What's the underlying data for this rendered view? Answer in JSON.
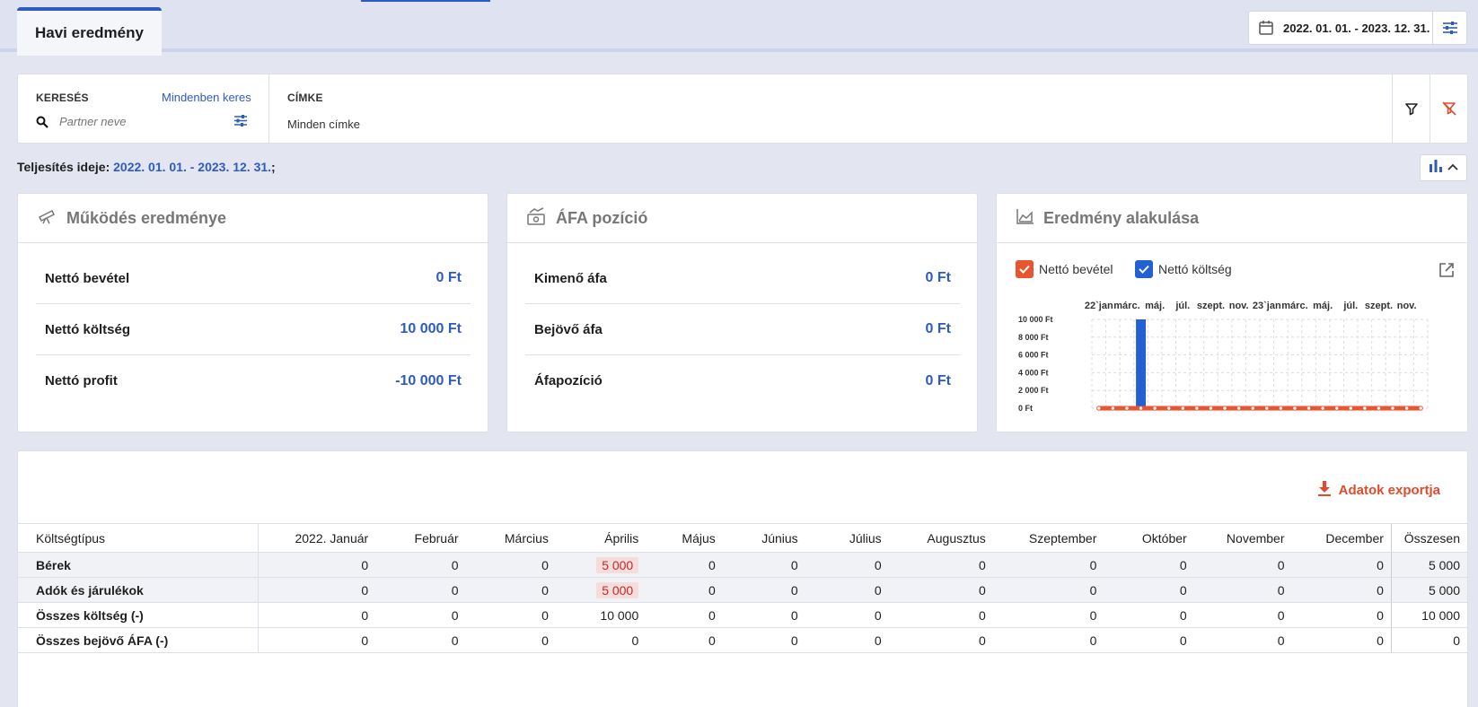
{
  "header": {
    "tab_label": "Havi eredmény",
    "date_range": "2022. 01. 01. - 2023. 12. 31."
  },
  "filter": {
    "search_label": "KERESÉS",
    "search_all_link": "Mindenben keres",
    "search_placeholder": "Partner neve",
    "tag_label": "CÍMKE",
    "tag_value": "Minden címke"
  },
  "performance": {
    "label": "Teljesítés ideje:",
    "value": "2022. 01. 01. - 2023. 12. 31.",
    "suffix": ";"
  },
  "cards": {
    "operation": {
      "title": "Működés eredménye",
      "rows": [
        {
          "label": "Nettó bevétel",
          "value": "0 Ft"
        },
        {
          "label": "Nettó költség",
          "value": "10 000 Ft"
        },
        {
          "label": "Nettó profit",
          "value": "-10 000 Ft"
        }
      ]
    },
    "vat": {
      "title": "ÁFA pozíció",
      "rows": [
        {
          "label": "Kimenő áfa",
          "value": "0 Ft"
        },
        {
          "label": "Bejövő áfa",
          "value": "0 Ft"
        },
        {
          "label": "Áfapozíció",
          "value": "0 Ft"
        }
      ]
    },
    "trend": {
      "title": "Eredmény alakulása",
      "legend_income": "Nettó bevétel",
      "legend_cost": "Nettó költség"
    }
  },
  "colors": {
    "accent": "#2e5bc0",
    "income": "#e8552f",
    "cost": "#2360d1"
  },
  "chart_data": {
    "type": "bar",
    "x_tick_labels": [
      "22`jan",
      "márc.",
      "máj.",
      "júl.",
      "szept.",
      "nov.",
      "23`jan",
      "márc.",
      "máj.",
      "júl.",
      "szept.",
      "nov."
    ],
    "x_tick_months": [
      0,
      2,
      4,
      6,
      8,
      10,
      12,
      14,
      16,
      18,
      20,
      22
    ],
    "y_tick_labels": [
      "10 000 Ft",
      "8 000 Ft",
      "6 000 Ft",
      "4 000 Ft",
      "2 000 Ft",
      "0 Ft"
    ],
    "ylim": [
      0,
      10000
    ],
    "months": 24,
    "series": [
      {
        "name": "Nettó költség",
        "kind": "bar",
        "values": [
          0,
          0,
          0,
          10000,
          0,
          0,
          0,
          0,
          0,
          0,
          0,
          0,
          0,
          0,
          0,
          0,
          0,
          0,
          0,
          0,
          0,
          0,
          0,
          0
        ]
      },
      {
        "name": "Nettó bevétel",
        "kind": "line",
        "values": [
          0,
          0,
          0,
          0,
          0,
          0,
          0,
          0,
          0,
          0,
          0,
          0,
          0,
          0,
          0,
          0,
          0,
          0,
          0,
          0,
          0,
          0,
          0,
          0
        ]
      }
    ],
    "grid": true
  },
  "table": {
    "export_label": "Adatok exportja",
    "columns": [
      "Költségtípus",
      "2022. Január",
      "Február",
      "Március",
      "Április",
      "Május",
      "Június",
      "Július",
      "Augusztus",
      "Szeptember",
      "Október",
      "November",
      "December",
      "Összesen"
    ],
    "rows": [
      {
        "label": "Bérek",
        "cells": [
          "0",
          "0",
          "0",
          "5 000",
          "0",
          "0",
          "0",
          "0",
          "0",
          "0",
          "0",
          "0"
        ],
        "total": "5 000",
        "highlight": [
          3
        ]
      },
      {
        "label": "Adók és járulékok",
        "cells": [
          "0",
          "0",
          "0",
          "5 000",
          "0",
          "0",
          "0",
          "0",
          "0",
          "0",
          "0",
          "0"
        ],
        "total": "5 000",
        "highlight": [
          3
        ]
      },
      {
        "label": "Összes költség (-)",
        "cells": [
          "0",
          "0",
          "0",
          "10 000",
          "0",
          "0",
          "0",
          "0",
          "0",
          "0",
          "0",
          "0"
        ],
        "total": "10 000",
        "highlight": []
      },
      {
        "label": "Összes bejövő ÁFA (-)",
        "cells": [
          "0",
          "0",
          "0",
          "0",
          "0",
          "0",
          "0",
          "0",
          "0",
          "0",
          "0",
          "0"
        ],
        "total": "0",
        "highlight": []
      }
    ]
  }
}
